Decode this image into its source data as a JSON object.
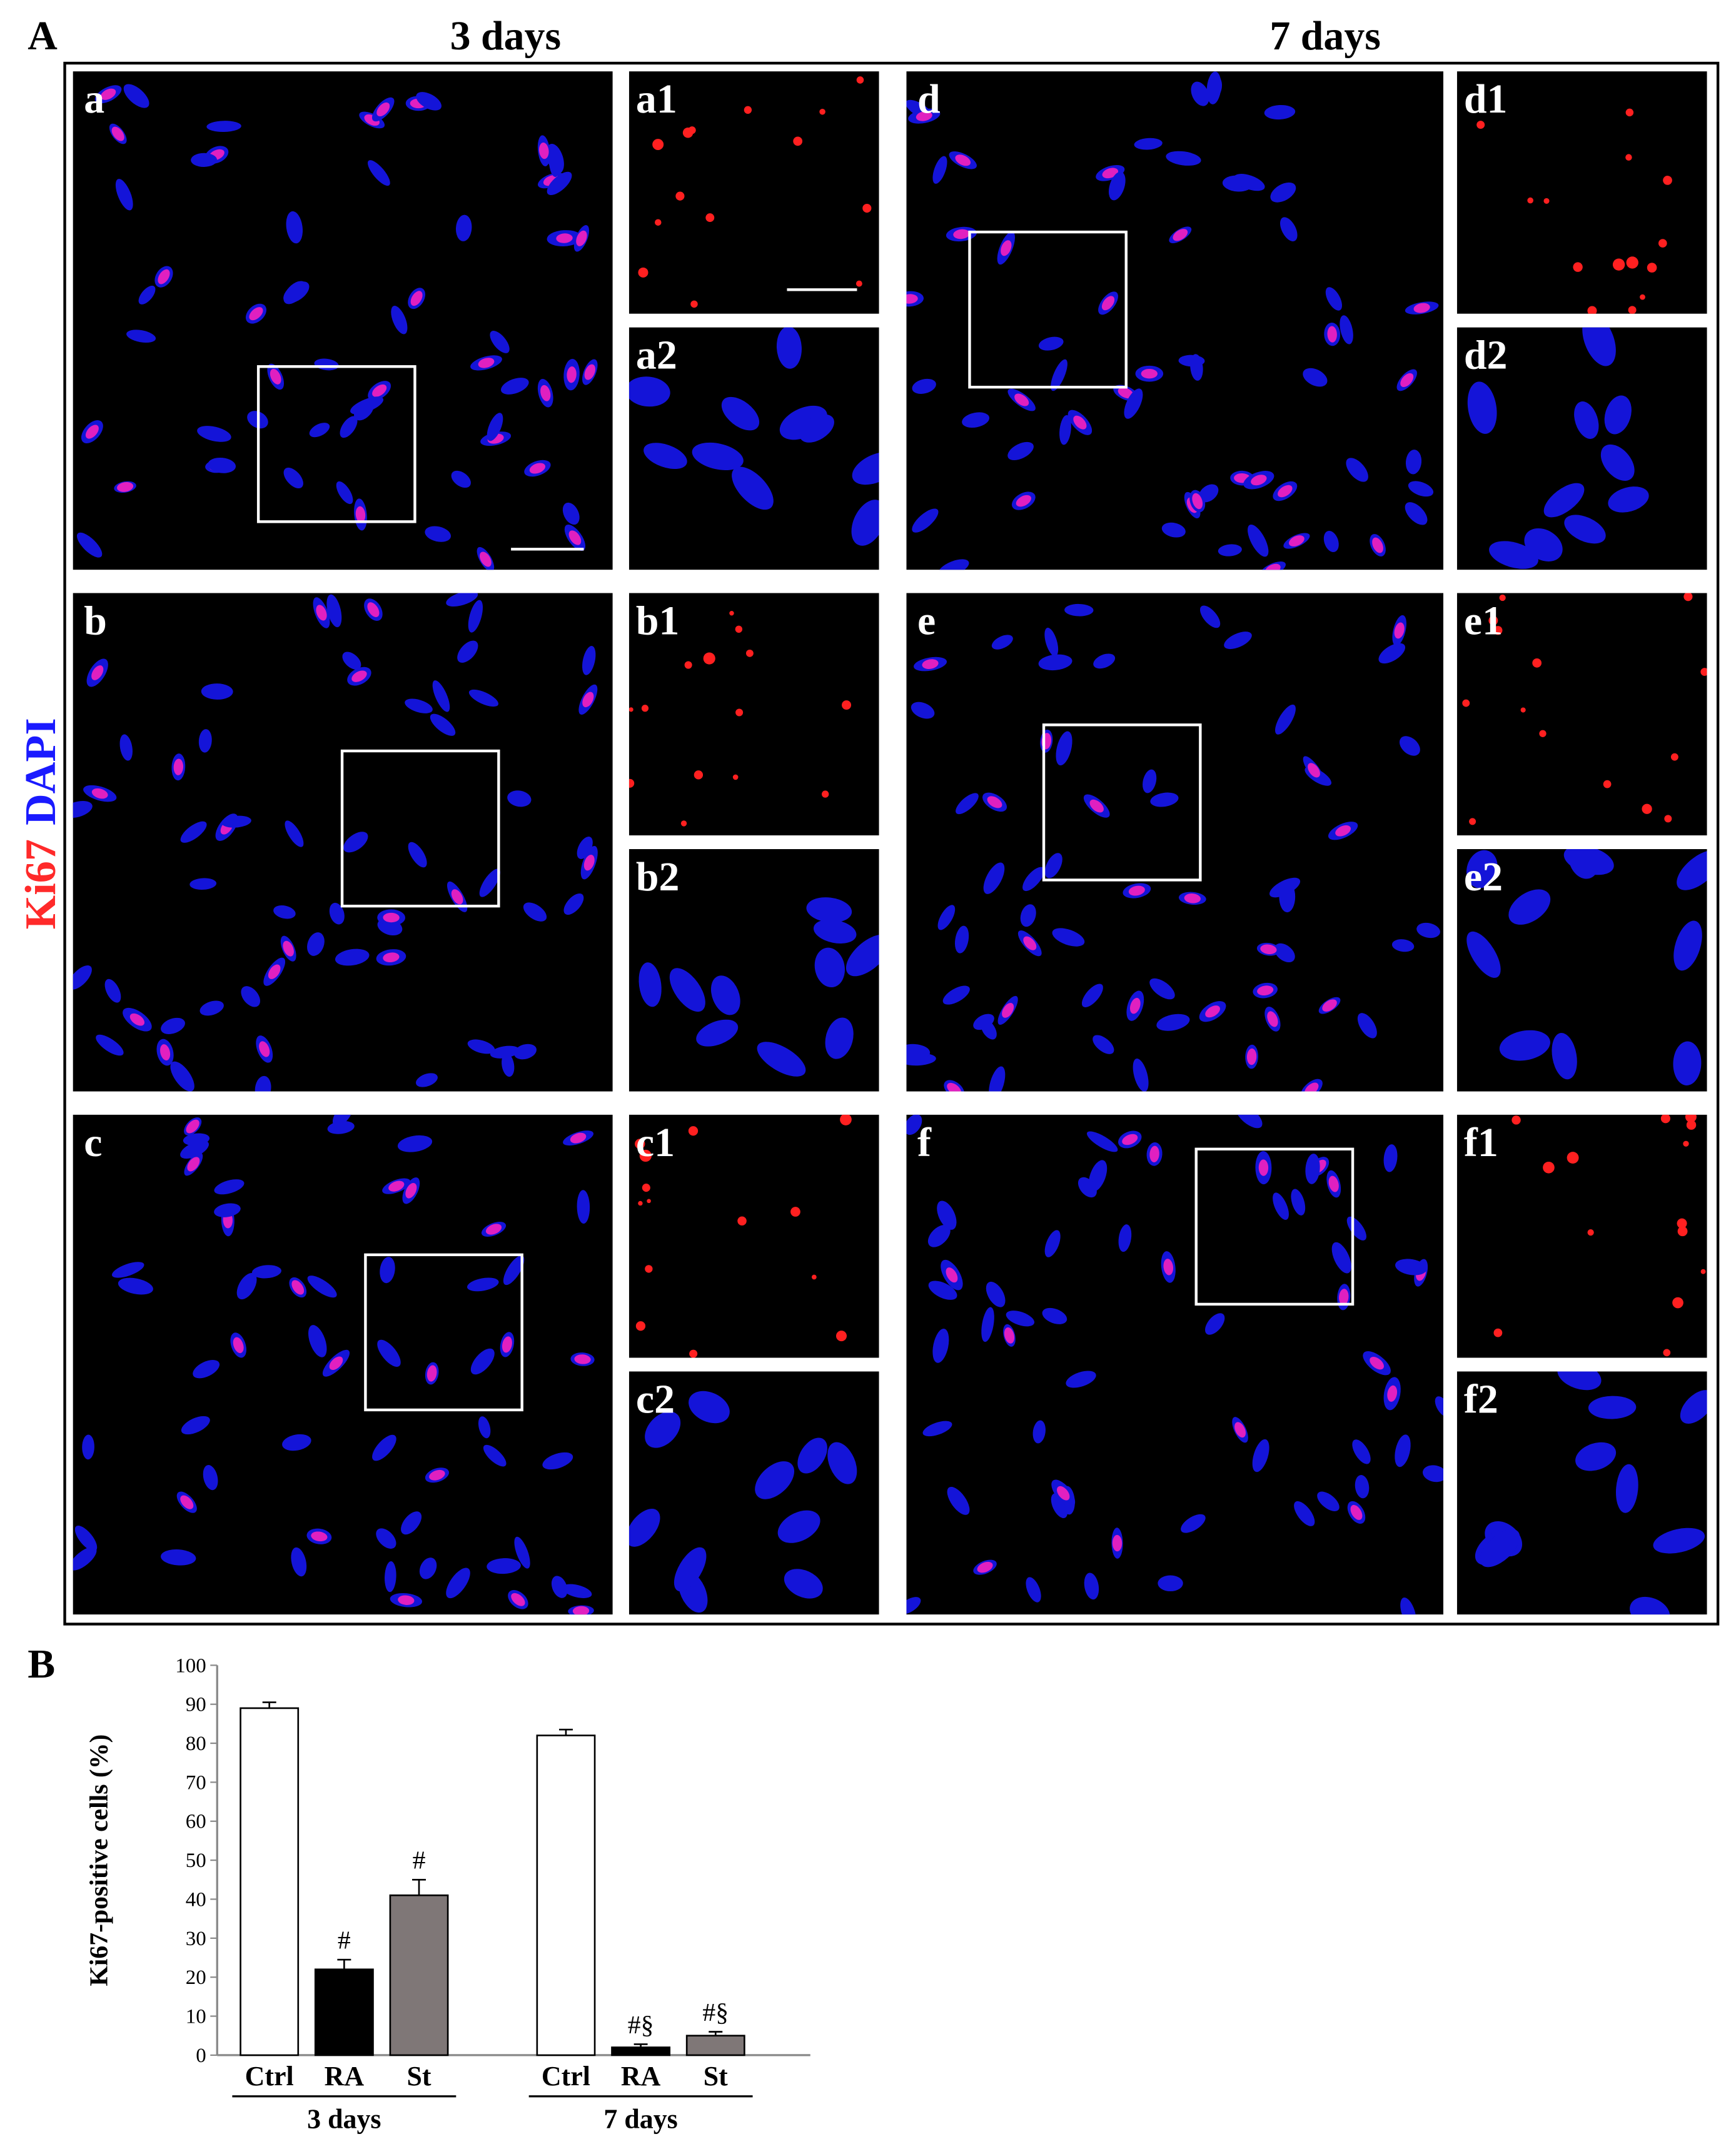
{
  "figure_a": {
    "label": "A",
    "columns": [
      "3 days",
      "7 days"
    ],
    "side_label": {
      "ki67": "Ki67",
      "dapi": "DAPI"
    },
    "panels": [
      {
        "label": "a",
        "insets": [
          "a1",
          "a2"
        ]
      },
      {
        "label": "b",
        "insets": [
          "b1",
          "b2"
        ]
      },
      {
        "label": "c",
        "insets": [
          "c1",
          "c2"
        ]
      },
      {
        "label": "d",
        "insets": [
          "d1",
          "d2"
        ]
      },
      {
        "label": "e",
        "insets": [
          "e1",
          "e2"
        ]
      },
      {
        "label": "f",
        "insets": [
          "f1",
          "f2"
        ]
      }
    ]
  },
  "chart_data": {
    "type": "bar",
    "label": "B",
    "y_label": "Ki67-positive cells (%)",
    "ylim": [
      0,
      100
    ],
    "yticks": [
      0,
      10,
      20,
      30,
      40,
      50,
      60,
      70,
      80,
      90,
      100
    ],
    "colors": [
      "#ffffff",
      "#000000",
      "#7f7777"
    ],
    "groups": [
      {
        "label": "3 days",
        "categories": [
          "Ctrl",
          "RA",
          "St"
        ],
        "values": [
          89,
          22,
          41
        ],
        "errors": [
          1.5,
          2.5,
          4
        ],
        "annotations": [
          null,
          "#",
          "#"
        ]
      },
      {
        "label": "7 days",
        "categories": [
          "Ctrl",
          "RA",
          "St"
        ],
        "values": [
          82,
          2,
          5
        ],
        "errors": [
          1.5,
          0.8,
          1
        ],
        "annotations": [
          null,
          "#§",
          "#§"
        ]
      }
    ]
  }
}
